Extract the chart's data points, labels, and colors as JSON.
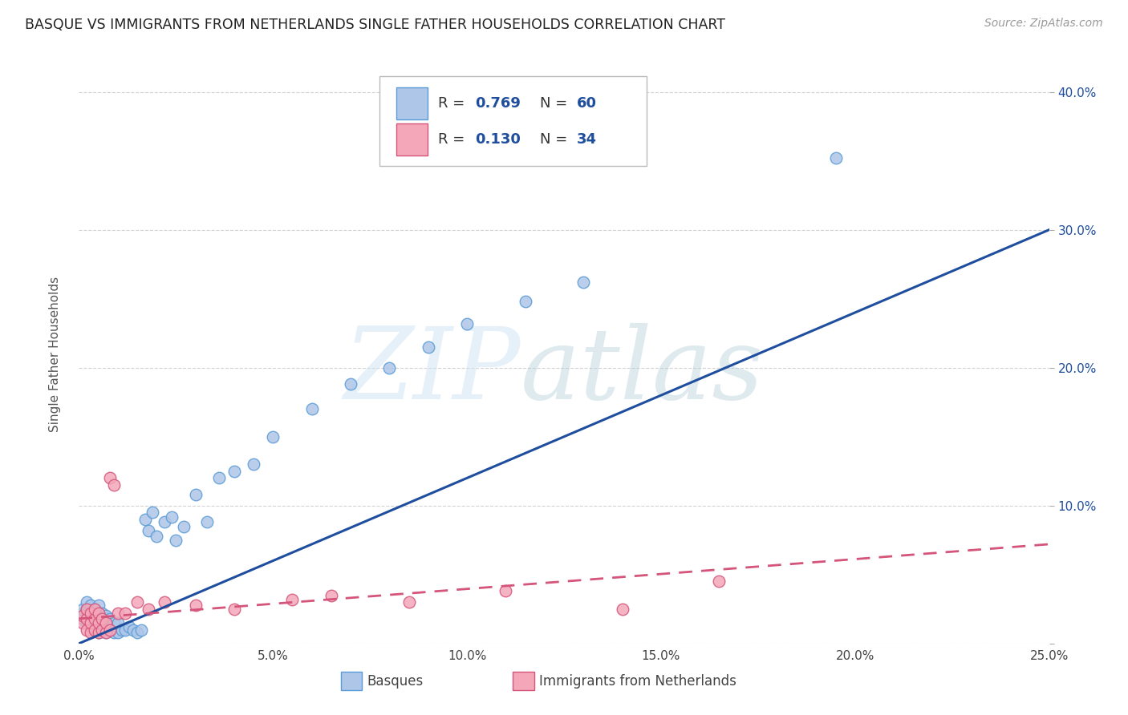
{
  "title": "BASQUE VS IMMIGRANTS FROM NETHERLANDS SINGLE FATHER HOUSEHOLDS CORRELATION CHART",
  "source": "Source: ZipAtlas.com",
  "ylabel": "Single Father Households",
  "xlim": [
    0.0,
    0.25
  ],
  "ylim": [
    0.0,
    0.42
  ],
  "xticks": [
    0.0,
    0.05,
    0.1,
    0.15,
    0.2,
    0.25
  ],
  "yticks": [
    0.0,
    0.1,
    0.2,
    0.3,
    0.4
  ],
  "xticklabels": [
    "0.0%",
    "5.0%",
    "10.0%",
    "15.0%",
    "20.0%",
    "25.0%"
  ],
  "yticklabels_right": [
    "",
    "10.0%",
    "20.0%",
    "30.0%",
    "40.0%"
  ],
  "background_color": "#ffffff",
  "grid_color": "#c8c8c8",
  "basque_fill": "#aec6e8",
  "basque_edge": "#5b9bd5",
  "neth_fill": "#f4a7b9",
  "neth_edge": "#d4547a",
  "blue_line_color": "#1f4e9e",
  "pink_line_color": "#d4547a",
  "tick_label_color": "#1f4e9e",
  "legend_R1": "0.769",
  "legend_N1": "60",
  "legend_R2": "0.130",
  "legend_N2": "34",
  "legend_label1": "Basques",
  "legend_label2": "Immigrants from Netherlands",
  "blue_line_x": [
    0.0,
    0.25
  ],
  "blue_line_y": [
    0.0,
    0.3
  ],
  "pink_line_x": [
    0.0,
    0.25
  ],
  "pink_line_y": [
    0.018,
    0.072
  ],
  "basque_x": [
    0.001,
    0.001,
    0.001,
    0.002,
    0.002,
    0.002,
    0.002,
    0.003,
    0.003,
    0.003,
    0.003,
    0.004,
    0.004,
    0.004,
    0.004,
    0.005,
    0.005,
    0.005,
    0.005,
    0.005,
    0.006,
    0.006,
    0.006,
    0.007,
    0.007,
    0.007,
    0.008,
    0.008,
    0.009,
    0.009,
    0.01,
    0.01,
    0.011,
    0.012,
    0.013,
    0.014,
    0.015,
    0.016,
    0.017,
    0.018,
    0.019,
    0.02,
    0.022,
    0.024,
    0.025,
    0.027,
    0.03,
    0.033,
    0.036,
    0.04,
    0.045,
    0.05,
    0.06,
    0.07,
    0.08,
    0.09,
    0.1,
    0.115,
    0.13,
    0.195
  ],
  "basque_y": [
    0.018,
    0.022,
    0.025,
    0.015,
    0.02,
    0.025,
    0.03,
    0.012,
    0.018,
    0.022,
    0.028,
    0.01,
    0.015,
    0.02,
    0.025,
    0.008,
    0.012,
    0.018,
    0.022,
    0.028,
    0.01,
    0.016,
    0.022,
    0.008,
    0.014,
    0.02,
    0.01,
    0.018,
    0.008,
    0.015,
    0.008,
    0.015,
    0.01,
    0.01,
    0.012,
    0.01,
    0.008,
    0.01,
    0.09,
    0.082,
    0.095,
    0.078,
    0.088,
    0.092,
    0.075,
    0.085,
    0.108,
    0.088,
    0.12,
    0.125,
    0.13,
    0.15,
    0.17,
    0.188,
    0.2,
    0.215,
    0.232,
    0.248,
    0.262,
    0.352
  ],
  "neth_x": [
    0.001,
    0.001,
    0.002,
    0.002,
    0.002,
    0.003,
    0.003,
    0.003,
    0.004,
    0.004,
    0.004,
    0.005,
    0.005,
    0.005,
    0.006,
    0.006,
    0.007,
    0.007,
    0.008,
    0.008,
    0.009,
    0.01,
    0.012,
    0.015,
    0.018,
    0.022,
    0.03,
    0.04,
    0.055,
    0.065,
    0.085,
    0.11,
    0.14,
    0.165
  ],
  "neth_y": [
    0.015,
    0.02,
    0.01,
    0.018,
    0.025,
    0.008,
    0.015,
    0.022,
    0.01,
    0.018,
    0.025,
    0.008,
    0.015,
    0.022,
    0.01,
    0.018,
    0.008,
    0.015,
    0.01,
    0.12,
    0.115,
    0.022,
    0.022,
    0.03,
    0.025,
    0.03,
    0.028,
    0.025,
    0.032,
    0.035,
    0.03,
    0.038,
    0.025,
    0.045
  ]
}
